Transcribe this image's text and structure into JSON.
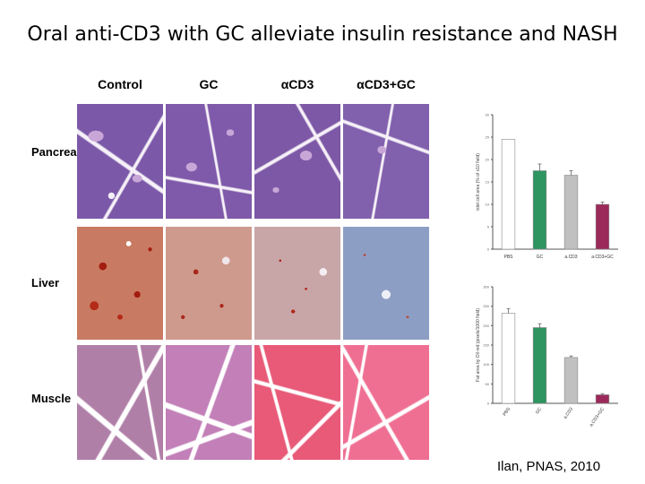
{
  "slide": {
    "title": "Oral anti-CD3 with GC alleviate insulin resistance and NASH",
    "citation": "Ilan, PNAS, 2010"
  },
  "panel": {
    "columns": [
      "Control",
      "GC",
      "αCD3",
      "αCD3+GC"
    ],
    "rows": [
      "Pancreas",
      "Liver",
      "Muscle"
    ]
  },
  "colors": {
    "pbs": "#ffffff",
    "gc": "#2e9460",
    "acd3": "#c0c0c0",
    "acd3gc": "#9b2a5a"
  },
  "chart_data": [
    {
      "type": "bar",
      "ylabel": "islet cell area (% of x10 field)",
      "categories": [
        "PBS",
        "GC",
        "a.CD3",
        "a.CD3+GC"
      ],
      "values": [
        24.5,
        17.5,
        16.5,
        10
      ],
      "errors": [
        0,
        1.5,
        1,
        0.5
      ],
      "ylim": [
        0,
        30
      ],
      "yticks": [
        0,
        5,
        10,
        15,
        20,
        25,
        30
      ]
    },
    {
      "type": "bar",
      "ylabel": "Fat area by Oil red (pixels/1000 field)",
      "categories": [
        "PBS",
        "GC",
        "a.CD3",
        "a.CD3+GC"
      ],
      "values": [
        232,
        195,
        118,
        22
      ],
      "errors": [
        12,
        10,
        4,
        3
      ],
      "ylim": [
        0,
        300
      ],
      "yticks": [
        0,
        50,
        100,
        150,
        200,
        250,
        300
      ]
    }
  ]
}
